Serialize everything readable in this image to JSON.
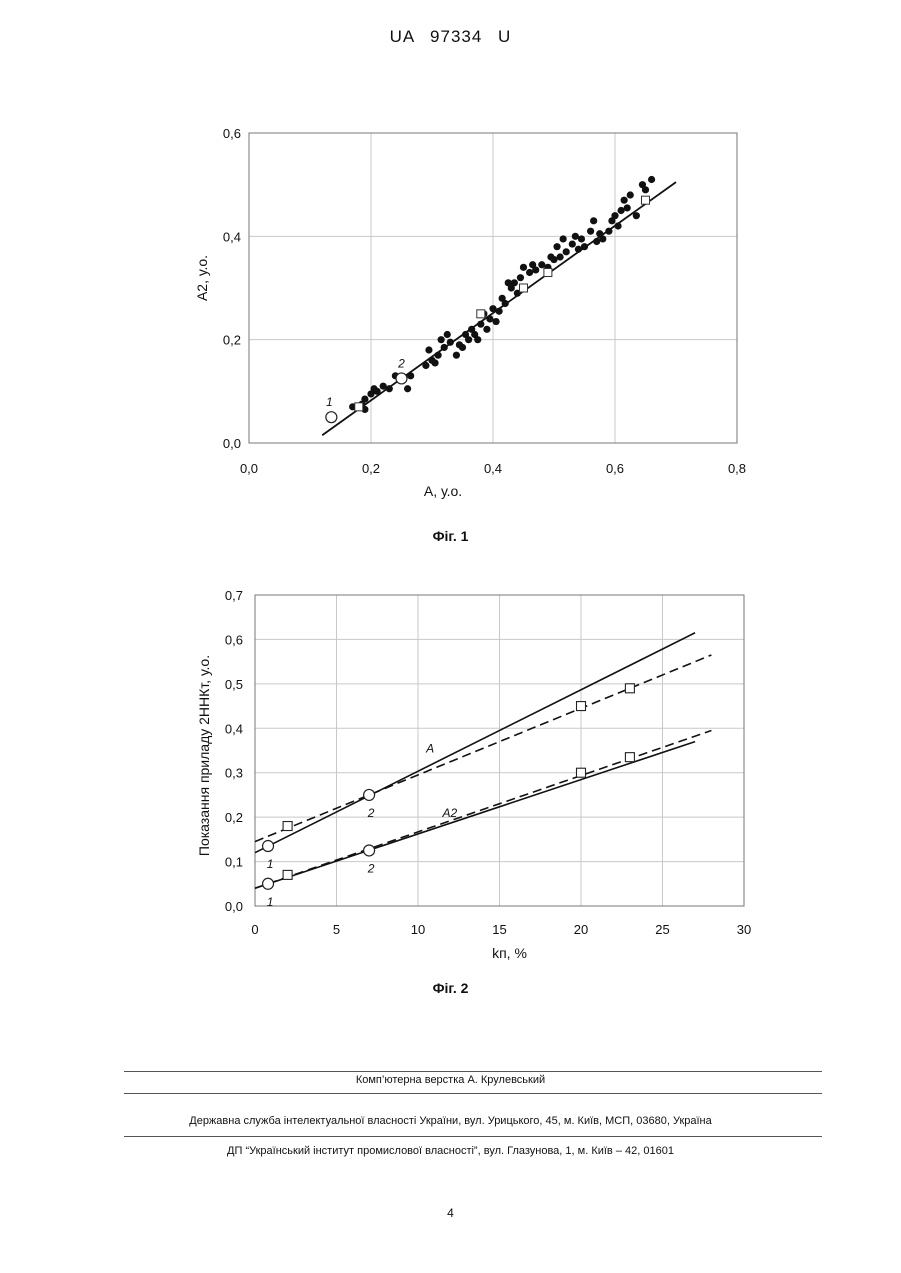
{
  "header": {
    "doc_id": "UA   97334   U"
  },
  "figure1": {
    "caption": "Фіг. 1",
    "chart_data": {
      "type": "scatter",
      "title": "",
      "xlabel": "A, у.о.",
      "ylabel": "A2, у.о.",
      "xlim": [
        0.0,
        0.8
      ],
      "ylim": [
        0.0,
        0.6
      ],
      "x_ticks": [
        "0,0",
        "0,2",
        "0,4",
        "0,6",
        "0,8"
      ],
      "y_ticks": [
        "0,0",
        "0,2",
        "0,4",
        "0,6"
      ],
      "grid": true,
      "series": [
        {
          "marker": "filled-circle",
          "points": [
            [
              0.17,
              0.07
            ],
            [
              0.185,
              0.075
            ],
            [
              0.19,
              0.085
            ],
            [
              0.19,
              0.065
            ],
            [
              0.2,
              0.095
            ],
            [
              0.205,
              0.105
            ],
            [
              0.21,
              0.1
            ],
            [
              0.22,
              0.11
            ],
            [
              0.23,
              0.105
            ],
            [
              0.24,
              0.13
            ],
            [
              0.26,
              0.105
            ],
            [
              0.265,
              0.13
            ],
            [
              0.29,
              0.15
            ],
            [
              0.295,
              0.18
            ],
            [
              0.3,
              0.16
            ],
            [
              0.305,
              0.155
            ],
            [
              0.31,
              0.17
            ],
            [
              0.315,
              0.2
            ],
            [
              0.32,
              0.185
            ],
            [
              0.325,
              0.21
            ],
            [
              0.33,
              0.195
            ],
            [
              0.34,
              0.17
            ],
            [
              0.345,
              0.19
            ],
            [
              0.35,
              0.185
            ],
            [
              0.355,
              0.21
            ],
            [
              0.36,
              0.2
            ],
            [
              0.365,
              0.22
            ],
            [
              0.37,
              0.21
            ],
            [
              0.375,
              0.2
            ],
            [
              0.38,
              0.23
            ],
            [
              0.385,
              0.25
            ],
            [
              0.39,
              0.22
            ],
            [
              0.395,
              0.24
            ],
            [
              0.4,
              0.26
            ],
            [
              0.405,
              0.235
            ],
            [
              0.41,
              0.255
            ],
            [
              0.415,
              0.28
            ],
            [
              0.42,
              0.27
            ],
            [
              0.425,
              0.31
            ],
            [
              0.43,
              0.3
            ],
            [
              0.435,
              0.31
            ],
            [
              0.44,
              0.29
            ],
            [
              0.445,
              0.32
            ],
            [
              0.45,
              0.34
            ],
            [
              0.46,
              0.33
            ],
            [
              0.465,
              0.345
            ],
            [
              0.47,
              0.335
            ],
            [
              0.48,
              0.345
            ],
            [
              0.49,
              0.34
            ],
            [
              0.495,
              0.36
            ],
            [
              0.5,
              0.355
            ],
            [
              0.505,
              0.38
            ],
            [
              0.51,
              0.36
            ],
            [
              0.515,
              0.395
            ],
            [
              0.52,
              0.37
            ],
            [
              0.53,
              0.385
            ],
            [
              0.535,
              0.4
            ],
            [
              0.54,
              0.375
            ],
            [
              0.545,
              0.395
            ],
            [
              0.55,
              0.38
            ],
            [
              0.56,
              0.41
            ],
            [
              0.565,
              0.43
            ],
            [
              0.57,
              0.39
            ],
            [
              0.575,
              0.405
            ],
            [
              0.58,
              0.395
            ],
            [
              0.59,
              0.41
            ],
            [
              0.595,
              0.43
            ],
            [
              0.6,
              0.44
            ],
            [
              0.605,
              0.42
            ],
            [
              0.61,
              0.45
            ],
            [
              0.615,
              0.47
            ],
            [
              0.62,
              0.455
            ],
            [
              0.625,
              0.48
            ],
            [
              0.635,
              0.44
            ],
            [
              0.645,
              0.5
            ],
            [
              0.65,
              0.49
            ],
            [
              0.66,
              0.51
            ]
          ]
        },
        {
          "marker": "open-square",
          "points": [
            [
              0.18,
              0.07
            ],
            [
              0.38,
              0.25
            ],
            [
              0.45,
              0.3
            ],
            [
              0.49,
              0.33
            ],
            [
              0.65,
              0.47
            ]
          ]
        },
        {
          "marker": "open-circle",
          "labels": [
            "1",
            "2"
          ],
          "points": [
            [
              0.135,
              0.05
            ],
            [
              0.25,
              0.125
            ]
          ]
        }
      ],
      "fit_line": [
        [
          0.12,
          0.015
        ],
        [
          0.7,
          0.505
        ]
      ]
    }
  },
  "figure2": {
    "caption": "Фіг. 2",
    "chart_data": {
      "type": "line",
      "title": "",
      "xlabel": "kп, %",
      "ylabel": "Показання приладу 2ННКт, у.о.",
      "xlim": [
        0,
        30
      ],
      "ylim": [
        0.0,
        0.7
      ],
      "x_ticks": [
        "0",
        "5",
        "10",
        "15",
        "20",
        "25",
        "30"
      ],
      "y_ticks": [
        "0,0",
        "0,1",
        "0,2",
        "0,3",
        "0,4",
        "0,5",
        "0,6",
        "0,7"
      ],
      "grid": true,
      "series": [
        {
          "name": "A",
          "style": "solid",
          "x": [
            0,
            27
          ],
          "values": [
            0.12,
            0.615
          ]
        },
        {
          "style": "dashed",
          "x": [
            0,
            28
          ],
          "values": [
            0.145,
            0.565
          ]
        },
        {
          "name": "A2",
          "style": "solid",
          "x": [
            0,
            27
          ],
          "values": [
            0.04,
            0.37
          ]
        },
        {
          "style": "dashed",
          "x": [
            0,
            28
          ],
          "values": [
            0.04,
            0.395
          ]
        }
      ],
      "square_points": [
        [
          2,
          0.18
        ],
        [
          20,
          0.45
        ],
        [
          23,
          0.49
        ],
        [
          2,
          0.07
        ],
        [
          20,
          0.3
        ],
        [
          23,
          0.335
        ]
      ],
      "circle_points": [
        {
          "x": 0.8,
          "y": 0.135,
          "label": "1"
        },
        {
          "x": 7,
          "y": 0.25,
          "label": "2"
        },
        {
          "x": 0.8,
          "y": 0.05,
          "label": "1"
        },
        {
          "x": 7,
          "y": 0.125,
          "label": "2"
        }
      ]
    }
  },
  "footer": {
    "line1": "Комп’ютерна верстка А. Крулевський",
    "line2": "Державна служба інтелектуальної власності України, вул. Урицького, 45, м. Київ, МСП, 03680, Україна",
    "line3": "ДП “Український інститут промислової власності”, вул. Глазунова, 1, м. Київ – 42, 01601",
    "page": "4"
  }
}
